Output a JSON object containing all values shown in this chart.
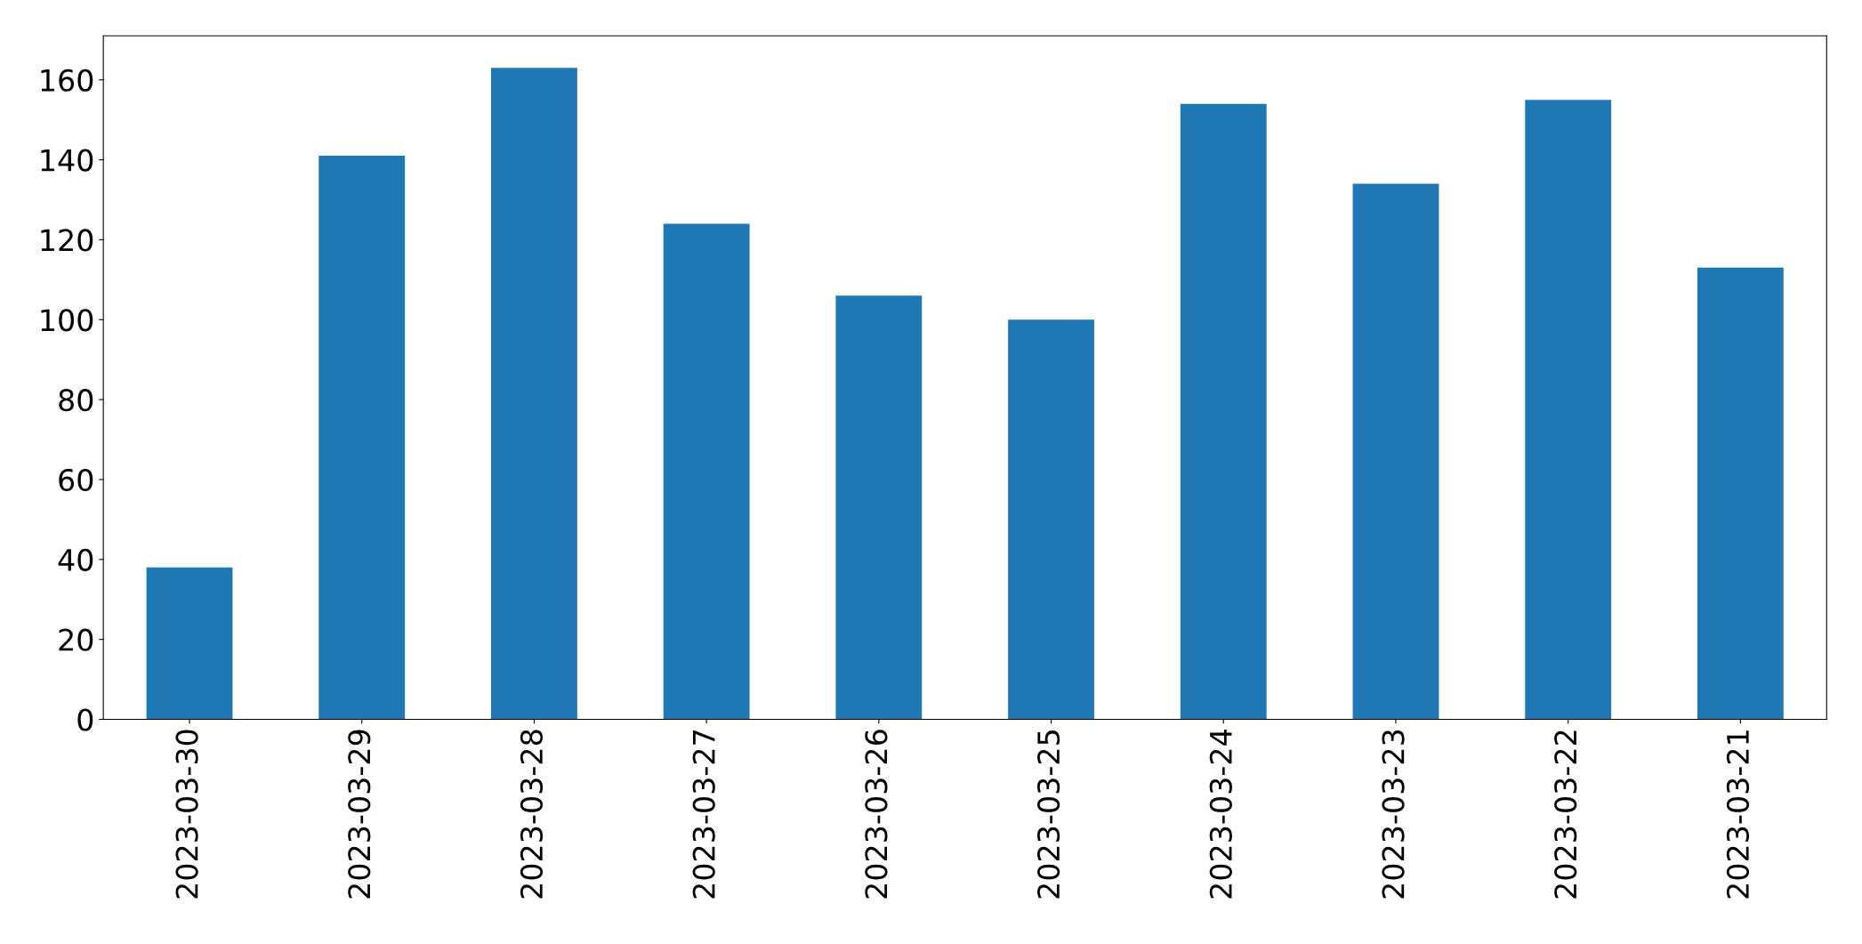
{
  "chart_data": {
    "type": "bar",
    "categories": [
      "2023-03-30",
      "2023-03-29",
      "2023-03-28",
      "2023-03-27",
      "2023-03-26",
      "2023-03-25",
      "2023-03-24",
      "2023-03-23",
      "2023-03-22",
      "2023-03-21"
    ],
    "values": [
      38,
      141,
      163,
      124,
      106,
      100,
      154,
      134,
      155,
      113
    ],
    "color": "#1f77b4",
    "ylim": [
      0,
      171
    ],
    "yticks": [
      0,
      20,
      40,
      60,
      80,
      100,
      120,
      140,
      160
    ],
    "grid": false,
    "legend": false
  }
}
